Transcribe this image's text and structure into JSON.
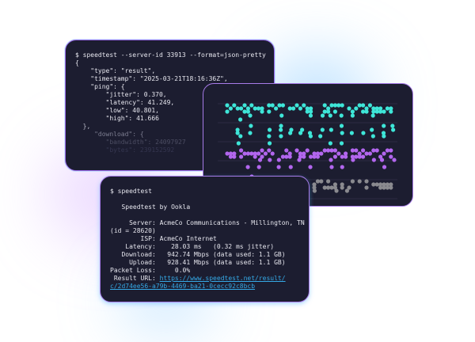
{
  "json_terminal": {
    "lines": [
      "$ speedtest --server-id 33913 --format=json-pretty",
      "{",
      "    \"type\": \"result\",",
      "    \"timestamp\": \"2025-03-21T18:16:36Z\",",
      "    \"ping\": {",
      "        \"jitter\": 0.370,",
      "        \"latency\": 41.249,",
      "        \"low\": 40.801,",
      "        \"high\": 41.666",
      "  },",
      "     \"download\": {",
      "        \"bandwidth\": 24097927",
      "        \"bytes\": 239152592"
    ]
  },
  "dot_chart": {
    "colors": {
      "cyan": "#3ee6d8",
      "purple": "#b266ee",
      "gray": "#8a8a8f",
      "grid": "#2b2c42"
    }
  },
  "cli_terminal": {
    "command": "$ speedtest",
    "title": "   Speedtest by Ookla",
    "server": "     Server: AcmeCo Communications - Millington, TN",
    "server_id": "(id = 28620)",
    "isp": "        ISP: AcmeCo Internet",
    "latency": "    Latency:    28.03 ms   (0.32 ms jitter)",
    "download": "   Download:   942.74 Mbps (data used: 1.1 GB)",
    "upload": "     Upload:   928.41 Mbps (data used: 1.1 GB)",
    "packet_loss": "Packet Loss:     0.0%",
    "result_label": " Result URL: ",
    "result_url_1": "https://www.speedtest.net/result/",
    "result_url_2": "c/2d74ee56-a79b-4469-ba21-0cecc92c8bcb"
  }
}
